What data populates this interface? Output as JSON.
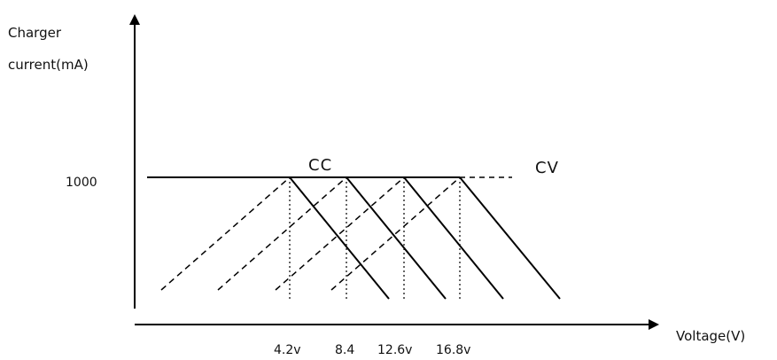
{
  "diagram": {
    "y_axis_label_line1": "Charger",
    "y_axis_label_line2": "current(mA)",
    "x_axis_label": "Voltage(V)",
    "y_tick": "1000",
    "x_ticks": [
      "4.2v",
      "8.4",
      "12.6v",
      "16.8v"
    ],
    "mode_cc": "CC",
    "mode_cv": "CV"
  },
  "colors": {
    "line": "#000000"
  }
}
